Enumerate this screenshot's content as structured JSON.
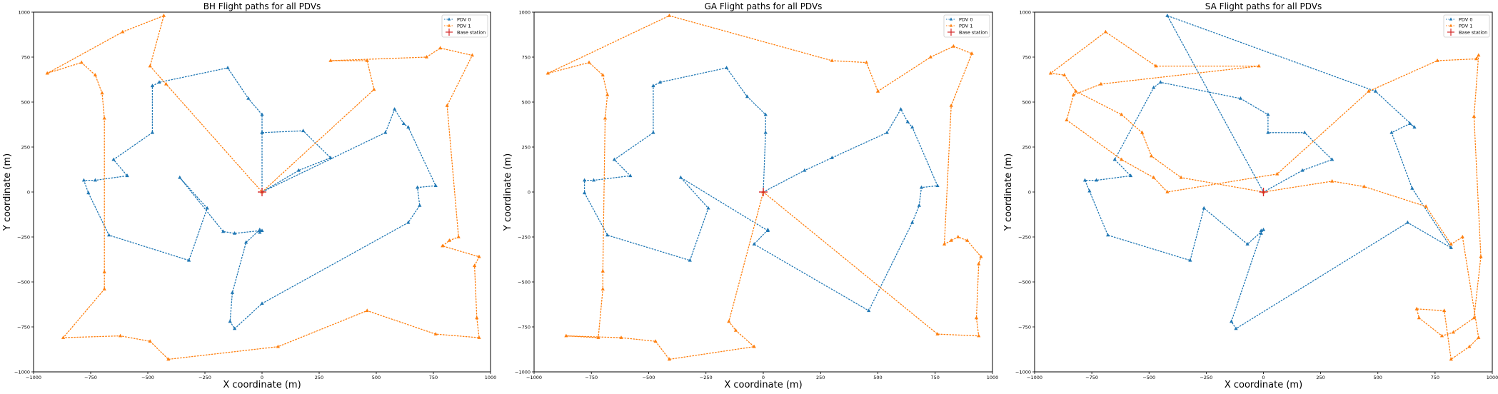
{
  "chart_data": [
    {
      "type": "line",
      "title": "BH Flight paths for all PDVs",
      "xlabel": "X coordinate (m)",
      "ylabel": "Y coordinate (m)",
      "xlim": [
        -1000,
        1000
      ],
      "ylim": [
        -1000,
        1000
      ],
      "xticks": [
        -1000,
        -750,
        -500,
        -250,
        0,
        250,
        500,
        750,
        1000
      ],
      "yticks": [
        -1000,
        -750,
        -500,
        -250,
        0,
        250,
        500,
        750,
        1000
      ],
      "grid": false,
      "legend_position": "top-right",
      "base_station": {
        "name": "Base station",
        "x": 0,
        "y": 0,
        "color": "#d62728"
      },
      "series": [
        {
          "name": "PDV 0",
          "color": "#1f77b4",
          "marker": "triangle",
          "x": [
            0,
            0,
            180,
            300,
            160,
            0,
            540,
            580,
            620,
            640,
            760,
            680,
            690,
            640,
            0,
            -120,
            -140,
            -130,
            -70,
            -10,
            0,
            -10,
            -10,
            -120,
            -170,
            -360,
            -240,
            -320,
            -670,
            -760,
            -780,
            -730,
            -590,
            -650,
            -480,
            -480,
            -450,
            -150,
            -60,
            0,
            0
          ],
          "y": [
            0,
            330,
            340,
            190,
            120,
            0,
            330,
            460,
            380,
            360,
            35,
            25,
            -75,
            -170,
            -620,
            -760,
            -720,
            -560,
            -280,
            -210,
            -215,
            -225,
            -215,
            -230,
            -220,
            80,
            -90,
            -380,
            -240,
            -5,
            65,
            65,
            90,
            180,
            330,
            590,
            610,
            690,
            520,
            430,
            330
          ]
        },
        {
          "name": "PDV 1",
          "color": "#ff7f0e",
          "marker": "triangle",
          "x": [
            0,
            490,
            460,
            300,
            720,
            780,
            920,
            810,
            860,
            820,
            790,
            950,
            930,
            940,
            950,
            760,
            460,
            70,
            -410,
            -490,
            -620,
            -870,
            -690,
            -690,
            -690,
            -700,
            -730,
            -790,
            -940,
            -610,
            -430,
            -490,
            -420,
            0
          ],
          "y": [
            0,
            570,
            730,
            730,
            750,
            800,
            760,
            480,
            -250,
            -270,
            -300,
            -360,
            -410,
            -700,
            -810,
            -790,
            -660,
            -860,
            -930,
            -830,
            -800,
            -810,
            -540,
            -445,
            410,
            550,
            650,
            720,
            660,
            890,
            980,
            700,
            600,
            0
          ]
        }
      ]
    },
    {
      "type": "line",
      "title": "GA Flight paths for all PDVs",
      "xlabel": "X coordinate (m)",
      "ylabel": "Y coordinate (m)",
      "xlim": [
        -1000,
        1000
      ],
      "ylim": [
        -1000,
        1000
      ],
      "xticks": [
        -1000,
        -750,
        -500,
        -250,
        0,
        250,
        500,
        750,
        1000
      ],
      "yticks": [
        -1000,
        -750,
        -500,
        -250,
        0,
        250,
        500,
        750,
        1000
      ],
      "grid": false,
      "legend_position": "top-right",
      "base_station": {
        "name": "Base station",
        "x": 0,
        "y": 0,
        "color": "#d62728"
      },
      "series": [
        {
          "name": "PDV 0",
          "color": "#1f77b4",
          "marker": "triangle",
          "x": [
            0,
            180,
            300,
            540,
            600,
            630,
            650,
            760,
            690,
            680,
            650,
            460,
            -40,
            20,
            20,
            -360,
            -240,
            -320,
            -680,
            -780,
            -780,
            -740,
            -580,
            -650,
            -480,
            -480,
            -450,
            -160,
            -70,
            10,
            10,
            0
          ],
          "y": [
            0,
            120,
            190,
            330,
            460,
            390,
            360,
            35,
            25,
            -75,
            -170,
            -660,
            -290,
            -210,
            -215,
            80,
            -90,
            -380,
            -240,
            -5,
            65,
            65,
            90,
            180,
            330,
            590,
            610,
            690,
            530,
            430,
            330,
            0
          ]
        },
        {
          "name": "PDV 1",
          "color": "#ff7f0e",
          "marker": "triangle",
          "x": [
            0,
            760,
            940,
            930,
            940,
            950,
            890,
            850,
            820,
            790,
            820,
            910,
            830,
            730,
            500,
            450,
            300,
            -410,
            -940,
            -760,
            -700,
            -680,
            -690,
            -700,
            -700,
            -720,
            -860,
            -620,
            -470,
            -410,
            -40,
            -120,
            -150,
            0
          ],
          "y": [
            0,
            -790,
            -800,
            -700,
            -400,
            -360,
            -270,
            -250,
            -270,
            -290,
            480,
            770,
            810,
            750,
            560,
            720,
            730,
            980,
            660,
            720,
            650,
            540,
            410,
            -440,
            -540,
            -810,
            -800,
            -810,
            -830,
            -930,
            -860,
            -770,
            -720,
            0
          ]
        }
      ]
    },
    {
      "type": "line",
      "title": "SA Flight paths for all PDVs",
      "xlabel": "X coordinate (m)",
      "ylabel": "Y coordinate (m)",
      "xlim": [
        -1000,
        1000
      ],
      "ylim": [
        -1000,
        1000
      ],
      "xticks": [
        -1000,
        -750,
        -500,
        -250,
        0,
        250,
        500,
        750,
        1000
      ],
      "yticks": [
        -1000,
        -750,
        -500,
        -250,
        0,
        250,
        500,
        750,
        1000
      ],
      "grid": false,
      "legend_position": "top-right",
      "base_station": {
        "name": "Base station",
        "x": 0,
        "y": 0,
        "color": "#d62728"
      },
      "series": [
        {
          "name": "PDV 0",
          "color": "#1f77b4",
          "marker": "triangle",
          "x": [
            0,
            170,
            300,
            180,
            20,
            20,
            -100,
            -450,
            -480,
            -650,
            -580,
            -730,
            -780,
            -760,
            -680,
            -320,
            -260,
            -70,
            0,
            -10,
            -10,
            -140,
            -120,
            630,
            820,
            650,
            560,
            640,
            660,
            490,
            -420,
            0
          ],
          "y": [
            0,
            120,
            180,
            330,
            330,
            430,
            520,
            610,
            580,
            180,
            90,
            65,
            65,
            5,
            -240,
            -380,
            -90,
            -290,
            -210,
            -215,
            -230,
            -720,
            -760,
            -170,
            -310,
            20,
            330,
            380,
            360,
            560,
            980,
            0
          ]
        },
        {
          "name": "PDV 1",
          "color": "#ff7f0e",
          "marker": "triangle",
          "x": [
            0,
            -360,
            -490,
            -530,
            -620,
            -820,
            -870,
            -930,
            -690,
            -470,
            -20,
            -710,
            -830,
            -860,
            -620,
            -480,
            -420,
            60,
            460,
            760,
            930,
            940,
            920,
            950,
            920,
            830,
            780,
            680,
            670,
            790,
            820,
            900,
            940,
            870,
            820,
            710,
            440,
            300,
            0
          ],
          "y": [
            0,
            80,
            200,
            330,
            430,
            560,
            650,
            660,
            890,
            700,
            700,
            600,
            540,
            400,
            180,
            80,
            0,
            100,
            560,
            730,
            740,
            760,
            420,
            -360,
            -700,
            -780,
            -800,
            -700,
            -650,
            -660,
            -930,
            -860,
            -810,
            -250,
            -290,
            -80,
            30,
            60,
            0
          ]
        }
      ]
    }
  ]
}
